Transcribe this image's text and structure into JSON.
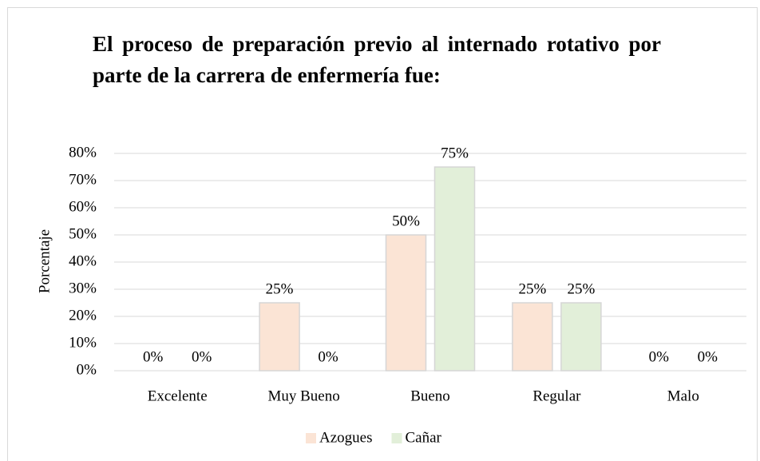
{
  "chart_data": {
    "type": "bar",
    "title": "El proceso de preparación previo al internado rotativo por parte de la carrera de enfermería fue:",
    "ylabel": "Porcentaje",
    "categories": [
      "Excelente",
      "Muy Bueno",
      "Bueno",
      "Regular",
      "Malo"
    ],
    "series": [
      {
        "name": "Azogues",
        "color": "#fbe4d5",
        "values": [
          0,
          25,
          50,
          25,
          0
        ],
        "value_labels": [
          "0%",
          "25%",
          "50%",
          "25%",
          "0%"
        ]
      },
      {
        "name": "Cañar",
        "color": "#e2efd9",
        "values": [
          0,
          0,
          75,
          25,
          0
        ],
        "value_labels": [
          "0%",
          "0%",
          "75%",
          "25%",
          "0%"
        ]
      }
    ],
    "ylim": [
      0,
      80
    ],
    "yticks": [
      {
        "value": 0,
        "label": "0%"
      },
      {
        "value": 10,
        "label": "10%"
      },
      {
        "value": 20,
        "label": "20%"
      },
      {
        "value": 30,
        "label": "30%"
      },
      {
        "value": 40,
        "label": "40%"
      },
      {
        "value": 50,
        "label": "50%"
      },
      {
        "value": 60,
        "label": "60%"
      },
      {
        "value": 70,
        "label": "70%"
      },
      {
        "value": 80,
        "label": "80%"
      }
    ],
    "grid": true,
    "legend": "bottom"
  }
}
